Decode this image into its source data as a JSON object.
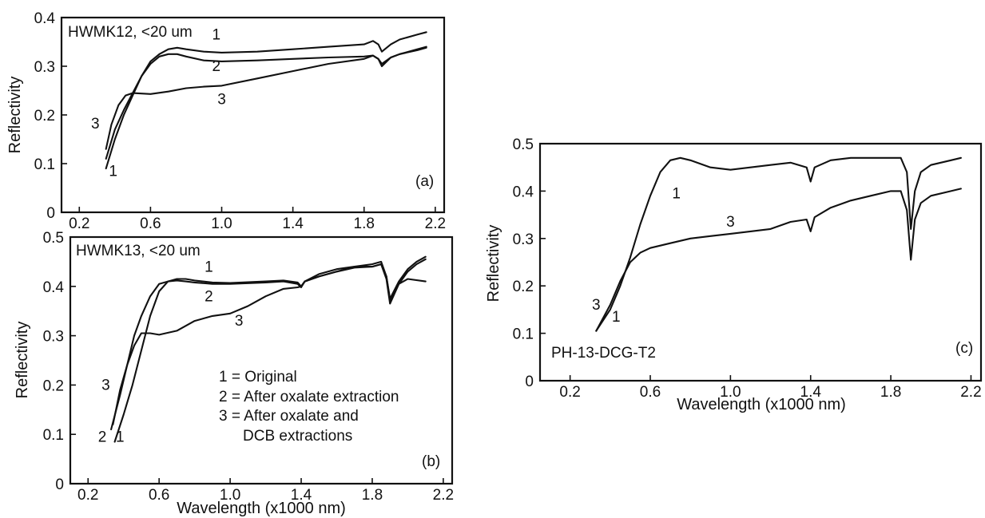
{
  "chart_data": [
    {
      "panel_id": "a",
      "type": "line",
      "title": "HWMK12, <20 um",
      "panel_label": "(a)",
      "xlabel": "",
      "ylabel": "Reflectivity",
      "xlim": [
        0.1,
        2.25
      ],
      "ylim": [
        0,
        0.4
      ],
      "xticks": [
        0.2,
        0.6,
        1.0,
        1.4,
        1.8,
        2.2
      ],
      "xtick_labels": [
        "0.2",
        "0.6",
        "1.0",
        "1.4",
        "1.8",
        "2.2"
      ],
      "yticks": [
        0,
        0.1,
        0.2,
        0.3,
        0.4
      ],
      "ytick_labels": [
        "0",
        "0.1",
        "0.2",
        "0.3",
        "0.4"
      ],
      "grid": false,
      "series": [
        {
          "name": "1",
          "x": [
            0.35,
            0.4,
            0.45,
            0.5,
            0.55,
            0.6,
            0.65,
            0.7,
            0.75,
            0.8,
            0.9,
            1.0,
            1.2,
            1.4,
            1.6,
            1.8,
            1.85,
            1.88,
            1.9,
            1.95,
            2.0,
            2.1,
            2.15
          ],
          "y": [
            0.09,
            0.15,
            0.2,
            0.24,
            0.28,
            0.31,
            0.325,
            0.335,
            0.338,
            0.335,
            0.33,
            0.328,
            0.33,
            0.335,
            0.34,
            0.345,
            0.352,
            0.345,
            0.33,
            0.345,
            0.355,
            0.365,
            0.37
          ]
        },
        {
          "name": "2",
          "x": [
            0.35,
            0.4,
            0.45,
            0.5,
            0.55,
            0.6,
            0.65,
            0.7,
            0.75,
            0.8,
            0.9,
            1.0,
            1.2,
            1.4,
            1.6,
            1.8,
            1.85,
            1.88,
            1.9,
            1.95,
            2.0,
            2.1,
            2.15
          ],
          "y": [
            0.11,
            0.17,
            0.21,
            0.245,
            0.28,
            0.305,
            0.32,
            0.325,
            0.325,
            0.32,
            0.312,
            0.31,
            0.312,
            0.315,
            0.318,
            0.32,
            0.322,
            0.315,
            0.3,
            0.318,
            0.325,
            0.333,
            0.338
          ]
        },
        {
          "name": "3",
          "x": [
            0.35,
            0.38,
            0.42,
            0.46,
            0.5,
            0.6,
            0.7,
            0.8,
            0.9,
            1.0,
            1.2,
            1.4,
            1.6,
            1.8,
            1.85,
            1.88,
            1.9,
            1.95,
            2.0,
            2.1,
            2.15
          ],
          "y": [
            0.13,
            0.18,
            0.22,
            0.24,
            0.245,
            0.243,
            0.248,
            0.255,
            0.258,
            0.26,
            0.275,
            0.29,
            0.305,
            0.315,
            0.322,
            0.315,
            0.305,
            0.318,
            0.325,
            0.335,
            0.34
          ]
        }
      ],
      "annotations": [
        {
          "text": "1",
          "x": 0.97,
          "y": 0.355
        },
        {
          "text": "2",
          "x": 0.97,
          "y": 0.29
        },
        {
          "text": "3",
          "x": 1.0,
          "y": 0.222
        },
        {
          "text": "3",
          "x": 0.29,
          "y": 0.172
        },
        {
          "text": "1",
          "x": 0.39,
          "y": 0.075
        }
      ]
    },
    {
      "panel_id": "b",
      "type": "line",
      "title": "HWMK13, <20 um",
      "panel_label": "(b)",
      "xlabel": "Wavelength  (x1000 nm)",
      "ylabel": "Reflectivity",
      "xlim": [
        0.1,
        2.25
      ],
      "ylim": [
        0,
        0.5
      ],
      "xticks": [
        0.2,
        0.6,
        1.0,
        1.4,
        1.8,
        2.2
      ],
      "xtick_labels": [
        "0.2",
        "0.6",
        "1.0",
        "1.4",
        "1.8",
        "2.2"
      ],
      "yticks": [
        0,
        0.1,
        0.2,
        0.3,
        0.4,
        0.5
      ],
      "ytick_labels": [
        "0",
        "0.1",
        "0.2",
        "0.3",
        "0.4",
        "0.5"
      ],
      "grid": false,
      "legend_lines": [
        "1 = Original",
        "2 = After oxalate extraction",
        "3 = After oxalate and",
        "DCB extractions"
      ],
      "legend_position": "bottom-right",
      "series": [
        {
          "name": "1",
          "x": [
            0.35,
            0.4,
            0.45,
            0.5,
            0.55,
            0.6,
            0.65,
            0.7,
            0.75,
            0.8,
            0.9,
            1.0,
            1.2,
            1.3,
            1.38,
            1.4,
            1.42,
            1.5,
            1.6,
            1.7,
            1.8,
            1.85,
            1.88,
            1.9,
            1.95,
            2.0,
            2.1
          ],
          "y": [
            0.085,
            0.14,
            0.2,
            0.27,
            0.34,
            0.39,
            0.41,
            0.415,
            0.415,
            0.412,
            0.408,
            0.407,
            0.41,
            0.412,
            0.408,
            0.4,
            0.41,
            0.42,
            0.43,
            0.44,
            0.445,
            0.45,
            0.42,
            0.37,
            0.405,
            0.415,
            0.41
          ]
        },
        {
          "name": "2",
          "x": [
            0.33,
            0.38,
            0.42,
            0.46,
            0.5,
            0.55,
            0.6,
            0.65,
            0.7,
            0.75,
            0.8,
            0.9,
            1.0,
            1.2,
            1.3,
            1.38,
            1.4,
            1.42,
            1.5,
            1.6,
            1.7,
            1.8,
            1.85,
            1.88,
            1.9,
            1.95,
            2.0,
            2.05,
            2.1
          ],
          "y": [
            0.11,
            0.18,
            0.24,
            0.3,
            0.34,
            0.38,
            0.405,
            0.41,
            0.412,
            0.41,
            0.408,
            0.405,
            0.405,
            0.408,
            0.41,
            0.405,
            0.398,
            0.41,
            0.42,
            0.43,
            0.438,
            0.44,
            0.445,
            0.415,
            0.365,
            0.405,
            0.43,
            0.445,
            0.455
          ]
        },
        {
          "name": "3",
          "x": [
            0.34,
            0.38,
            0.42,
            0.46,
            0.5,
            0.55,
            0.6,
            0.7,
            0.8,
            0.9,
            1.0,
            1.1,
            1.2,
            1.3,
            1.38,
            1.4,
            1.42,
            1.5,
            1.6,
            1.7,
            1.8,
            1.85,
            1.88,
            1.9,
            1.95,
            2.0,
            2.05,
            2.1
          ],
          "y": [
            0.12,
            0.19,
            0.24,
            0.28,
            0.305,
            0.305,
            0.302,
            0.31,
            0.33,
            0.34,
            0.345,
            0.36,
            0.38,
            0.395,
            0.398,
            0.4,
            0.41,
            0.425,
            0.435,
            0.44,
            0.44,
            0.445,
            0.42,
            0.375,
            0.41,
            0.435,
            0.45,
            0.46
          ]
        }
      ],
      "annotations": [
        {
          "text": "1",
          "x": 0.88,
          "y": 0.43
        },
        {
          "text": "2",
          "x": 0.88,
          "y": 0.37
        },
        {
          "text": "3",
          "x": 1.05,
          "y": 0.32
        },
        {
          "text": "3",
          "x": 0.3,
          "y": 0.19
        },
        {
          "text": "2",
          "x": 0.28,
          "y": 0.085
        },
        {
          "text": "1",
          "x": 0.38,
          "y": 0.085
        }
      ]
    },
    {
      "panel_id": "c",
      "type": "line",
      "title": "PH-13-DCG-T2",
      "panel_label": "(c)",
      "xlabel": "Wavelength  (x1000 nm)",
      "ylabel": "Reflectivity",
      "xlim": [
        0.05,
        2.25
      ],
      "ylim": [
        0,
        0.5
      ],
      "xticks": [
        0.2,
        0.6,
        1.0,
        1.4,
        1.8,
        2.2
      ],
      "xtick_labels": [
        "0.2",
        "0.6",
        "1.0",
        "1.4",
        "1.8",
        "2.2"
      ],
      "yticks": [
        0,
        0.1,
        0.2,
        0.3,
        0.4,
        0.5
      ],
      "ytick_labels": [
        "0",
        "0.1",
        "0.2",
        "0.3",
        "0.4",
        "0.5"
      ],
      "grid": false,
      "series": [
        {
          "name": "1",
          "x": [
            0.33,
            0.4,
            0.45,
            0.5,
            0.55,
            0.6,
            0.65,
            0.7,
            0.75,
            0.8,
            0.9,
            1.0,
            1.1,
            1.2,
            1.3,
            1.38,
            1.4,
            1.42,
            1.5,
            1.6,
            1.7,
            1.8,
            1.85,
            1.88,
            1.9,
            1.92,
            1.95,
            2.0,
            2.1,
            2.15
          ],
          "y": [
            0.105,
            0.15,
            0.2,
            0.26,
            0.33,
            0.39,
            0.44,
            0.465,
            0.47,
            0.465,
            0.45,
            0.445,
            0.45,
            0.455,
            0.46,
            0.45,
            0.42,
            0.45,
            0.465,
            0.47,
            0.47,
            0.47,
            0.47,
            0.44,
            0.32,
            0.4,
            0.44,
            0.455,
            0.465,
            0.47
          ]
        },
        {
          "name": "3",
          "x": [
            0.33,
            0.4,
            0.45,
            0.5,
            0.55,
            0.6,
            0.7,
            0.8,
            0.9,
            1.0,
            1.1,
            1.2,
            1.3,
            1.38,
            1.4,
            1.42,
            1.5,
            1.6,
            1.7,
            1.8,
            1.85,
            1.88,
            1.9,
            1.92,
            1.95,
            2.0,
            2.1,
            2.15
          ],
          "y": [
            0.105,
            0.16,
            0.21,
            0.25,
            0.27,
            0.28,
            0.29,
            0.3,
            0.305,
            0.31,
            0.315,
            0.32,
            0.335,
            0.34,
            0.315,
            0.345,
            0.365,
            0.38,
            0.39,
            0.4,
            0.4,
            0.36,
            0.255,
            0.34,
            0.375,
            0.39,
            0.4,
            0.405
          ]
        }
      ],
      "annotations": [
        {
          "text": "1",
          "x": 0.73,
          "y": 0.385
        },
        {
          "text": "3",
          "x": 1.0,
          "y": 0.325
        },
        {
          "text": "3",
          "x": 0.33,
          "y": 0.15
        },
        {
          "text": "1",
          "x": 0.43,
          "y": 0.125
        }
      ]
    }
  ]
}
